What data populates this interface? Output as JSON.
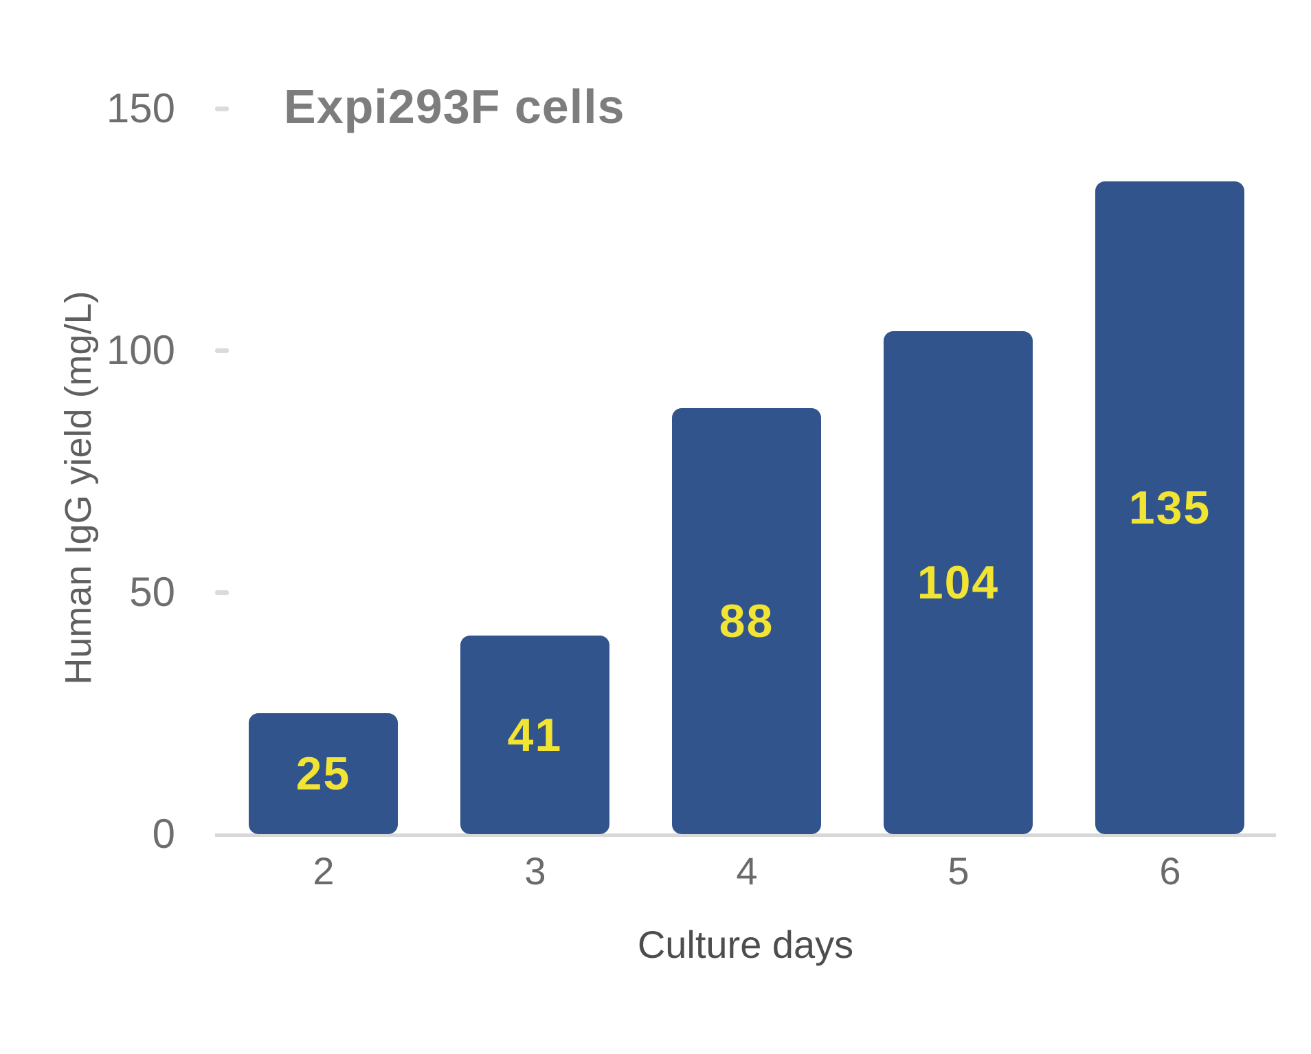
{
  "chart_data": {
    "type": "bar",
    "title": "Expi293F cells",
    "xlabel": "Culture days",
    "ylabel": "Human IgG yield (mg/L)",
    "categories": [
      "2",
      "3",
      "4",
      "5",
      "6"
    ],
    "values": [
      25,
      41,
      88,
      104,
      135
    ],
    "value_labels": [
      "25",
      "41",
      "88",
      "104",
      "135"
    ],
    "ylim": [
      0,
      150
    ],
    "yticks": [
      0,
      50,
      100,
      150
    ],
    "ytick_labels": [
      "0",
      "50",
      "100",
      "150"
    ],
    "grid": "off",
    "legend": "none",
    "value_label_position": "inside-center",
    "colors": {
      "bar": "#31548C",
      "value_label": "#F2E433",
      "axis_line": "#D8D8D8",
      "tick_mark": "#DBDBDB",
      "tick_text": "#6E6E6E",
      "title_text": "#7D7D7D",
      "axis_title_text": "#5F5F5F",
      "background": "#FFFFFF"
    }
  }
}
